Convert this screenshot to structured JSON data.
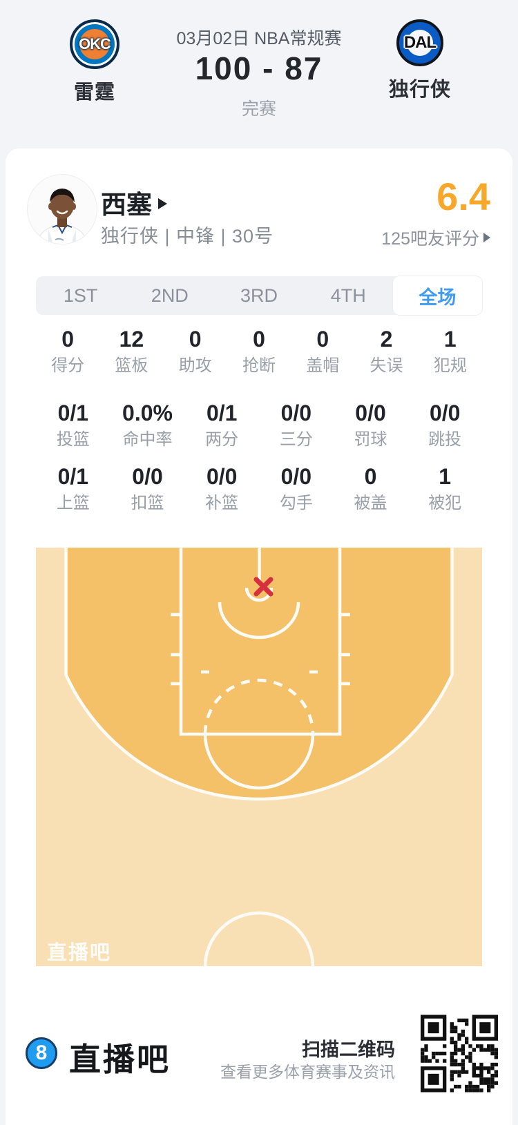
{
  "header": {
    "competition": "03月02日 NBA常规赛",
    "score": "100 - 87",
    "status": "完赛",
    "home": {
      "abbr": "OKC",
      "name": "雷霆"
    },
    "away": {
      "abbr": "DAL",
      "name": "独行侠"
    }
  },
  "player": {
    "name": "西塞",
    "meta": "独行侠 | 中锋 | 30号",
    "rating": "6.4",
    "rating_note": "125吧友评分"
  },
  "tabs": [
    {
      "label": "1ST",
      "active": false
    },
    {
      "label": "2ND",
      "active": false
    },
    {
      "label": "3RD",
      "active": false
    },
    {
      "label": "4TH",
      "active": false
    },
    {
      "label": "全场",
      "active": true
    }
  ],
  "stats": {
    "rows": [
      [
        {
          "value": "0",
          "label": "得分"
        },
        {
          "value": "12",
          "label": "篮板"
        },
        {
          "value": "0",
          "label": "助攻"
        },
        {
          "value": "0",
          "label": "抢断"
        },
        {
          "value": "0",
          "label": "盖帽"
        },
        {
          "value": "2",
          "label": "失误"
        },
        {
          "value": "1",
          "label": "犯规"
        }
      ],
      [
        {
          "value": "0/1",
          "label": "投篮"
        },
        {
          "value": "0.0%",
          "label": "命中率"
        },
        {
          "value": "0/1",
          "label": "两分"
        },
        {
          "value": "0/0",
          "label": "三分"
        },
        {
          "value": "0/0",
          "label": "罚球"
        },
        {
          "value": "0/0",
          "label": "跳投"
        }
      ],
      [
        {
          "value": "0/1",
          "label": "上篮"
        },
        {
          "value": "0/0",
          "label": "扣篮"
        },
        {
          "value": "0/0",
          "label": "补篮"
        },
        {
          "value": "0/0",
          "label": "勾手"
        },
        {
          "value": "0",
          "label": "被盖"
        },
        {
          "value": "1",
          "label": "被犯"
        }
      ]
    ]
  },
  "court": {
    "watermark": "直播吧",
    "marker": "missed-shot-x",
    "colors": {
      "outer": "#f9e0b4",
      "inner": "#f4c169",
      "line": "#fdfbf6",
      "marker_red": "#d5303e"
    }
  },
  "footer": {
    "logo_digit": "8",
    "brand": "直播吧",
    "qr_title": "扫描二维码",
    "qr_subtitle": "查看更多体育赛事及资讯"
  },
  "colors": {
    "accent_blue": "#3f9bf0",
    "rating_orange": "#f7a82a",
    "okc_blue": "#0077c0",
    "okc_orange": "#ee8033",
    "dal_blue": "#0a5bc4",
    "footer_blue": "#1f9bf0"
  }
}
